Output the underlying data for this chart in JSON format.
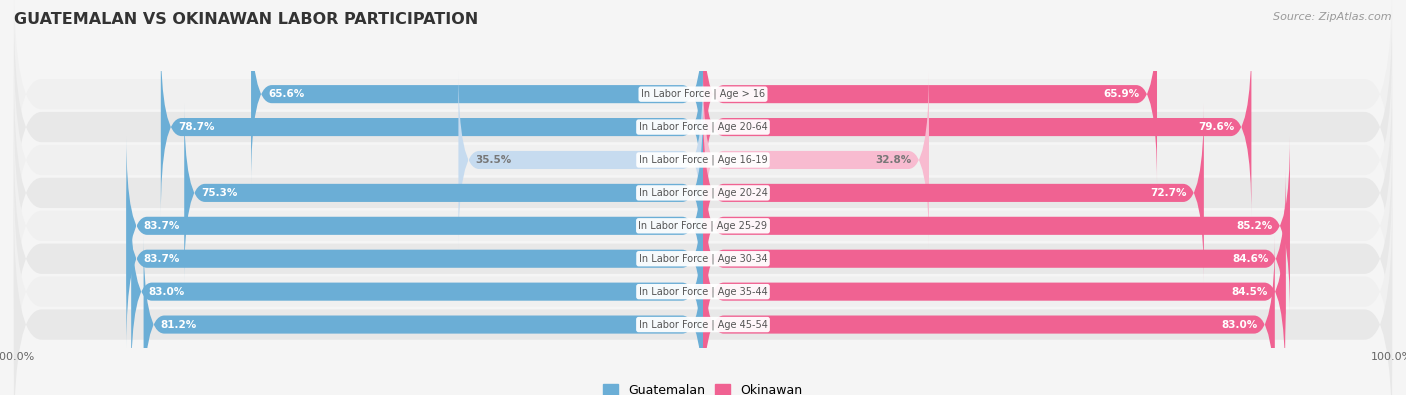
{
  "title": "GUATEMALAN VS OKINAWAN LABOR PARTICIPATION",
  "source": "Source: ZipAtlas.com",
  "categories": [
    "In Labor Force | Age > 16",
    "In Labor Force | Age 20-64",
    "In Labor Force | Age 16-19",
    "In Labor Force | Age 20-24",
    "In Labor Force | Age 25-29",
    "In Labor Force | Age 30-34",
    "In Labor Force | Age 35-44",
    "In Labor Force | Age 45-54"
  ],
  "guatemalan": [
    65.6,
    78.7,
    35.5,
    75.3,
    83.7,
    83.7,
    83.0,
    81.2
  ],
  "okinawan": [
    65.9,
    79.6,
    32.8,
    72.7,
    85.2,
    84.6,
    84.5,
    83.0
  ],
  "blue_full": "#6baed6",
  "pink_full": "#f06292",
  "blue_light": "#c6dbef",
  "pink_light": "#f8bbd0",
  "row_bg_alt1": "#f0f0f0",
  "row_bg_alt2": "#e8e8e8",
  "label_white": "#ffffff",
  "label_dark": "#777777",
  "center_label_color": "#555555",
  "title_color": "#333333",
  "source_color": "#999999",
  "legend_guatemalan": "Guatemalan",
  "legend_okinawan": "Okinawan",
  "max_val": 100.0,
  "light_threshold": 50.0,
  "fig_bg": "#f5f5f5"
}
